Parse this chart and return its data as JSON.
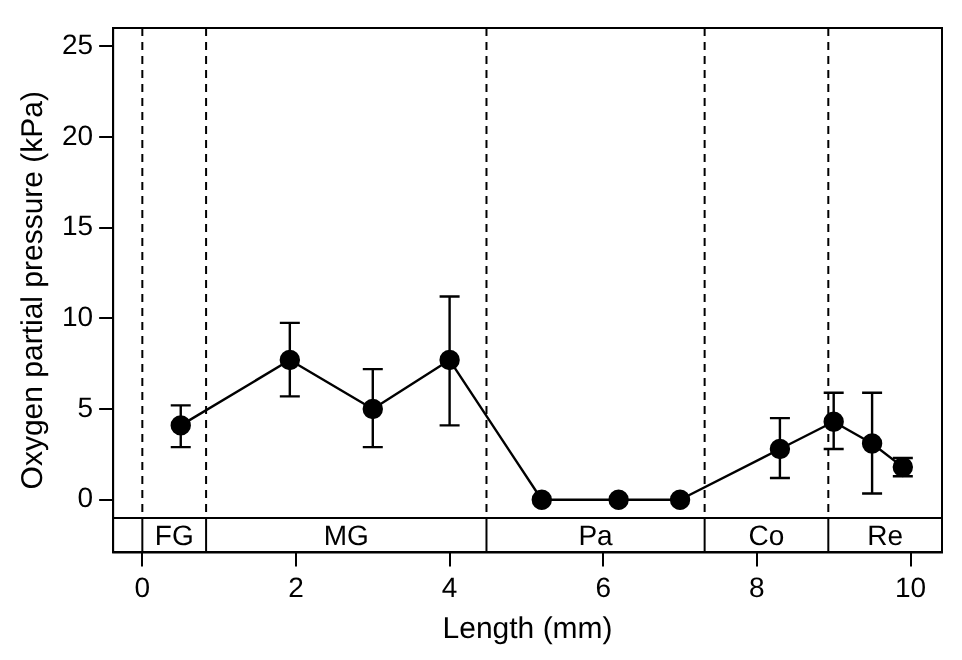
{
  "chart_data": {
    "type": "line",
    "xlabel": "Length (mm)",
    "ylabel": "Oxygen partial pressure (kPa)",
    "series": [
      {
        "color": "#000000",
        "x": [
          0.5,
          1.92,
          3.0,
          4.0,
          5.2,
          6.2,
          7.0,
          8.3,
          9.0,
          9.5,
          9.9
        ],
        "values": [
          4.1,
          7.7,
          5.0,
          7.7,
          0,
          0,
          0,
          2.8,
          4.3,
          3.1,
          1.8
        ],
        "errors": [
          [
            2.9,
            5.2
          ],
          [
            5.7,
            9.75
          ],
          [
            2.9,
            7.2
          ],
          [
            4.1,
            11.2
          ],
          null,
          null,
          null,
          [
            1.2,
            4.5
          ],
          [
            2.8,
            5.9
          ],
          [
            0.35,
            5.9
          ],
          [
            1.3,
            2.3
          ]
        ]
      }
    ],
    "xlim": [
      -0.38,
      10.41
    ],
    "ylim": [
      -2.9,
      26
    ],
    "xticks": [
      0,
      2,
      4,
      6,
      8,
      10
    ],
    "yticks": [
      0,
      5,
      10,
      15,
      20,
      25
    ],
    "grid": false,
    "legend": false,
    "marker": "circle",
    "line_style": "solid",
    "ref_lines": [
      {
        "axis": "x",
        "value": 0,
        "line_style": "dashed"
      },
      {
        "axis": "x",
        "value": 0.83,
        "line_style": "dashed"
      },
      {
        "axis": "x",
        "value": 4.48,
        "line_style": "dashed"
      },
      {
        "axis": "x",
        "value": 7.32,
        "line_style": "dashed"
      },
      {
        "axis": "x",
        "value": 8.93,
        "line_style": "dashed"
      },
      {
        "axis": "y",
        "value": -1,
        "line_style": "solid"
      }
    ],
    "annotations": [
      "FG",
      "MG",
      "Pa",
      "Co",
      "Re"
    ]
  }
}
